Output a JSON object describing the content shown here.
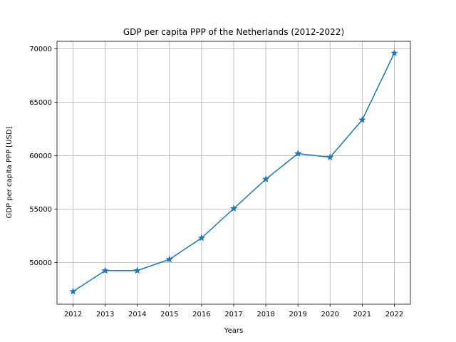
{
  "chart_data": {
    "type": "line",
    "title": "GDP per capita PPP of the Netherlands (2012-2022)",
    "xlabel": "Years",
    "ylabel": "GDP per capita PPP [USD]",
    "x": [
      2012,
      2013,
      2014,
      2015,
      2016,
      2017,
      2018,
      2019,
      2020,
      2021,
      2022
    ],
    "series": [
      {
        "values": [
          47300,
          49250,
          49250,
          50300,
          52300,
          55050,
          57800,
          60200,
          59850,
          63350,
          69600
        ],
        "color": "#1f77b4",
        "marker": "star"
      }
    ],
    "xticks": [
      "2012",
      "2013",
      "2014",
      "2015",
      "2016",
      "2017",
      "2018",
      "2019",
      "2020",
      "2021",
      "2022"
    ],
    "yticks": [
      "50000",
      "55000",
      "60000",
      "65000",
      "70000"
    ],
    "ytick_values": [
      50000,
      55000,
      60000,
      65000,
      70000
    ],
    "ylim": [
      46100,
      70700
    ],
    "grid": true,
    "grid_color": "#b0b0b0"
  }
}
